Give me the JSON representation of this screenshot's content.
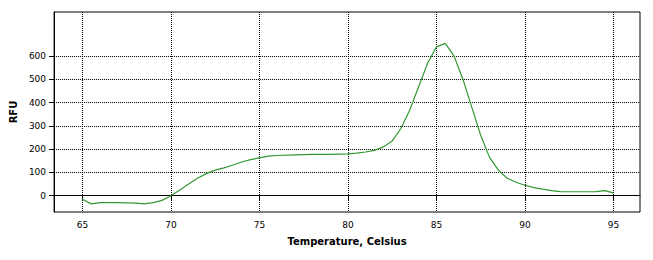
{
  "chart_data": {
    "type": "line",
    "x_label": "Temperature, Celsius",
    "y_label": "RFU",
    "x": [
      65,
      65.5,
      66,
      67,
      68,
      68.5,
      69,
      69.5,
      70,
      70.5,
      71,
      71.5,
      72,
      72.5,
      73,
      73.5,
      74,
      74.5,
      75,
      75.5,
      76,
      77,
      78,
      79,
      80,
      80.5,
      81,
      81.5,
      82,
      82.5,
      83,
      83.5,
      84,
      84.5,
      85,
      85.5,
      86,
      86.5,
      87,
      87.5,
      88,
      88.5,
      89,
      89.5,
      90,
      90.5,
      91,
      91.5,
      92,
      93,
      94,
      94.5,
      95
    ],
    "values": [
      -15,
      -35,
      -30,
      -30,
      -32,
      -35,
      -30,
      -20,
      0,
      25,
      50,
      75,
      95,
      110,
      120,
      132,
      145,
      155,
      163,
      170,
      173,
      176,
      178,
      178,
      180,
      183,
      188,
      195,
      210,
      235,
      290,
      370,
      470,
      570,
      640,
      655,
      600,
      500,
      380,
      260,
      165,
      110,
      75,
      58,
      45,
      35,
      28,
      22,
      18,
      17,
      18,
      22,
      12
    ],
    "color": "#339933",
    "xlim": [
      63.4,
      96.5
    ],
    "xticks": [
      65,
      70,
      75,
      80,
      85,
      90,
      95
    ],
    "ylim": [
      -70,
      790
    ],
    "yticks": [
      0,
      100,
      200,
      300,
      400,
      500,
      600
    ],
    "grid": true
  }
}
